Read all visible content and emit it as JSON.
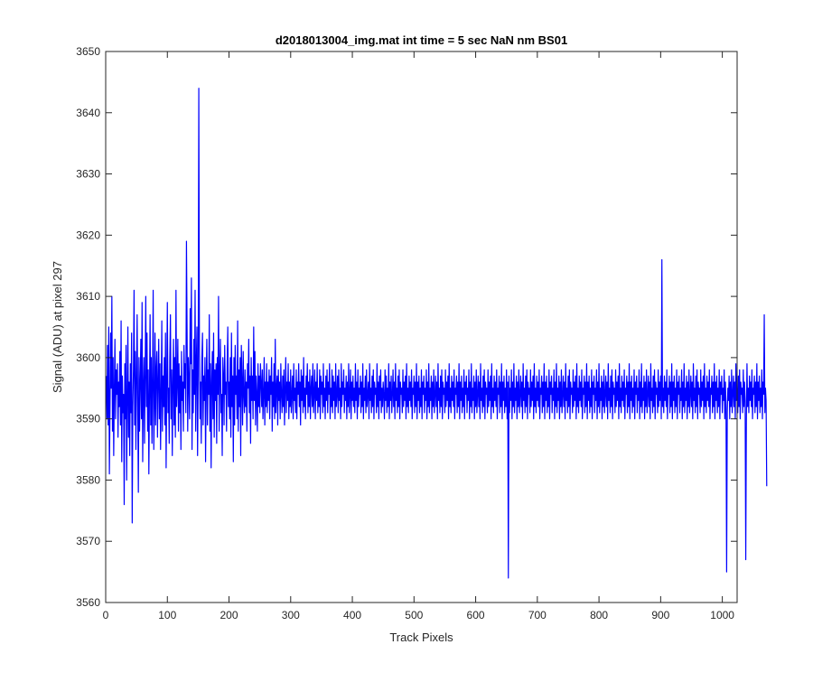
{
  "chart_data": {
    "type": "line",
    "title": "d2018013004_img.mat int time = 5 sec  NaN nm BS01",
    "xlabel": "Track Pixels",
    "ylabel": "Signal (ADU) at pixel 297",
    "xlim": [
      0,
      1024
    ],
    "ylim": [
      3560,
      3650
    ],
    "xticks": [
      0,
      100,
      200,
      300,
      400,
      500,
      600,
      700,
      800,
      900,
      1000
    ],
    "yticks": [
      3560,
      3570,
      3580,
      3590,
      3600,
      3610,
      3620,
      3630,
      3640,
      3650
    ],
    "grid": false,
    "legend": "none",
    "series_color": "#0000ff",
    "series": [
      {
        "x_start": 1,
        "x_step": 1,
        "values": [
          3597,
          3590,
          3602,
          3589,
          3605,
          3581,
          3592,
          3604,
          3595,
          3610,
          3588,
          3600,
          3584,
          3595,
          3603,
          3590,
          3598,
          3594,
          3599,
          3587,
          3596,
          3592,
          3601,
          3589,
          3606,
          3583,
          3597,
          3591,
          3594,
          3576,
          3599,
          3590,
          3602,
          3580,
          3593,
          3605,
          3587,
          3596,
          3584,
          3599,
          3591,
          3604,
          3573,
          3592,
          3598,
          3611,
          3589,
          3601,
          3585,
          3596,
          3607,
          3592,
          3578,
          3600,
          3588,
          3596,
          3603,
          3590,
          3609,
          3583,
          3595,
          3600,
          3586,
          3597,
          3610,
          3592,
          3604,
          3588,
          3598,
          3581,
          3594,
          3607,
          3589,
          3600,
          3586,
          3596,
          3611,
          3585,
          3592,
          3604,
          3589,
          3598,
          3601,
          3587,
          3596,
          3603,
          3590,
          3599,
          3585,
          3594,
          3606,
          3588,
          3597,
          3592,
          3600,
          3589,
          3604,
          3582,
          3596,
          3609,
          3591,
          3595,
          3586,
          3600,
          3607,
          3590,
          3598,
          3584,
          3596,
          3603,
          3589,
          3600,
          3587,
          3611,
          3592,
          3596,
          3603,
          3588,
          3599,
          3591,
          3597,
          3585,
          3601,
          3593,
          3596,
          3588,
          3602,
          3595,
          3599,
          3591,
          3619,
          3604,
          3588,
          3600,
          3596,
          3590,
          3608,
          3599,
          3613,
          3585,
          3598,
          3591,
          3603,
          3594,
          3611,
          3588,
          3599,
          3605,
          3584,
          3597,
          3644,
          3602,
          3590,
          3596,
          3586,
          3600,
          3604,
          3589,
          3597,
          3593,
          3600,
          3583,
          3596,
          3603,
          3589,
          3598,
          3594,
          3607,
          3588,
          3599,
          3582,
          3596,
          3601,
          3590,
          3604,
          3587,
          3598,
          3593,
          3599,
          3586,
          3600,
          3594,
          3610,
          3588,
          3597,
          3603,
          3591,
          3594,
          3584,
          3600,
          3597,
          3589,
          3602,
          3594,
          3596,
          3588,
          3599,
          3605,
          3592,
          3596,
          3590,
          3600,
          3587,
          3604,
          3592,
          3597,
          3583,
          3600,
          3589,
          3602,
          3594,
          3597,
          3590,
          3606,
          3588,
          3598,
          3592,
          3600,
          3584,
          3602,
          3596,
          3589,
          3601,
          3594,
          3591,
          3598,
          3592,
          3596,
          3588,
          3599,
          3595,
          3603,
          3591,
          3597,
          3586,
          3600,
          3593,
          3597,
          3590,
          3605,
          3593,
          3601,
          3589,
          3597,
          3594,
          3588,
          3599,
          3592,
          3597,
          3591,
          3599,
          3596,
          3592,
          3598,
          3590,
          3594,
          3600,
          3589,
          3596,
          3592,
          3599,
          3591,
          3596,
          3593,
          3598,
          3590,
          3597,
          3594,
          3600,
          3588,
          3596,
          3592,
          3599,
          3590,
          3603,
          3591,
          3595,
          3597,
          3589,
          3598,
          3593,
          3596,
          3590,
          3599,
          3594,
          3591,
          3597,
          3592,
          3598,
          3589,
          3595,
          3600,
          3591,
          3596,
          3593,
          3599,
          3590,
          3596,
          3592,
          3598,
          3591,
          3594,
          3597,
          3590,
          3599,
          3593,
          3595,
          3591,
          3598,
          3590,
          3596,
          3594,
          3599,
          3592,
          3596,
          3589,
          3598,
          3593,
          3597,
          3591,
          3600,
          3592,
          3595,
          3590,
          3597,
          3594,
          3599,
          3591,
          3596,
          3592,
          3598,
          3590,
          3595,
          3597,
          3592,
          3599,
          3591,
          3594,
          3598,
          3590,
          3596,
          3593,
          3599,
          3591,
          3595,
          3592,
          3598,
          3590,
          3597,
          3594,
          3596,
          3591,
          3599,
          3592,
          3595,
          3590,
          3597,
          3593,
          3598,
          3591,
          3596,
          3594,
          3599,
          3590,
          3595,
          3592,
          3598,
          3591,
          3597,
          3593,
          3596,
          3590,
          3599,
          3592,
          3594,
          3597,
          3591,
          3598,
          3593,
          3595,
          3590,
          3599,
          3592,
          3596,
          3594,
          3598,
          3591,
          3595,
          3593,
          3597,
          3590,
          3596,
          3592,
          3599,
          3591,
          3594,
          3598,
          3590,
          3596,
          3593,
          3597,
          3592,
          3595,
          3591,
          3599,
          3593,
          3596,
          3590,
          3598,
          3592,
          3595,
          3594,
          3597,
          3591,
          3596,
          3592,
          3599,
          3590,
          3595,
          3593,
          3597,
          3591,
          3598,
          3592,
          3594,
          3596,
          3590,
          3599,
          3593,
          3595,
          3591,
          3597,
          3592,
          3598,
          3590,
          3596,
          3594,
          3595,
          3591,
          3599,
          3592,
          3596,
          3590,
          3597,
          3593,
          3598,
          3591,
          3595,
          3592,
          3596,
          3594,
          3590,
          3598,
          3593,
          3597,
          3591,
          3595,
          3592,
          3599,
          3590,
          3596,
          3593,
          3597,
          3591,
          3594,
          3598,
          3592,
          3596,
          3590,
          3599,
          3593,
          3595,
          3591,
          3597,
          3592,
          3598,
          3590,
          3596,
          3594,
          3595,
          3591,
          3598,
          3592,
          3596,
          3593,
          3597,
          3590,
          3599,
          3592,
          3595,
          3591,
          3597,
          3593,
          3596,
          3592,
          3598,
          3590,
          3595,
          3594,
          3597,
          3591,
          3596,
          3592,
          3599,
          3590,
          3596,
          3593,
          3597,
          3591,
          3595,
          3592,
          3598,
          3590,
          3596,
          3594,
          3597,
          3591,
          3595,
          3593,
          3598,
          3590,
          3596,
          3592,
          3599,
          3591,
          3595,
          3593,
          3597,
          3590,
          3596,
          3592,
          3598,
          3591,
          3594,
          3597,
          3592,
          3596,
          3590,
          3599,
          3593,
          3595,
          3591,
          3597,
          3592,
          3598,
          3590,
          3596,
          3594,
          3595,
          3591,
          3598,
          3592,
          3596,
          3593,
          3597,
          3590,
          3599,
          3592,
          3595,
          3591,
          3597,
          3593,
          3596,
          3592,
          3598,
          3590,
          3595,
          3594,
          3597,
          3591,
          3596,
          3592,
          3599,
          3590,
          3596,
          3593,
          3597,
          3591,
          3595,
          3592,
          3598,
          3590,
          3596,
          3594,
          3597,
          3591,
          3595,
          3593,
          3598,
          3590,
          3596,
          3592,
          3599,
          3591,
          3595,
          3593,
          3597,
          3590,
          3596,
          3592,
          3598,
          3591,
          3594,
          3597,
          3592,
          3596,
          3590,
          3599,
          3593,
          3595,
          3591,
          3597,
          3592,
          3598,
          3590,
          3596,
          3594,
          3595,
          3591,
          3598,
          3592,
          3596,
          3593,
          3597,
          3590,
          3599,
          3592,
          3595,
          3591,
          3597,
          3593,
          3596,
          3592,
          3598,
          3590,
          3595,
          3594,
          3597,
          3591,
          3596,
          3592,
          3599,
          3590,
          3596,
          3593,
          3597,
          3591,
          3595,
          3592,
          3598,
          3590,
          3596,
          3564,
          3597,
          3591,
          3595,
          3593,
          3598,
          3590,
          3596,
          3592,
          3599,
          3591,
          3595,
          3593,
          3597,
          3590,
          3596,
          3592,
          3598,
          3591,
          3594,
          3597,
          3592,
          3596,
          3590,
          3599,
          3593,
          3595,
          3591,
          3597,
          3592,
          3598,
          3590,
          3596,
          3594,
          3595,
          3591,
          3598,
          3592,
          3596,
          3593,
          3597,
          3590,
          3599,
          3592,
          3595,
          3591,
          3597,
          3593,
          3596,
          3592,
          3598,
          3590,
          3595,
          3594,
          3597,
          3591,
          3596,
          3592,
          3599,
          3590,
          3596,
          3593,
          3597,
          3591,
          3595,
          3592,
          3598,
          3590,
          3596,
          3594,
          3597,
          3591,
          3595,
          3593,
          3598,
          3590,
          3596,
          3592,
          3599,
          3591,
          3595,
          3593,
          3597,
          3590,
          3596,
          3592,
          3598,
          3591,
          3594,
          3597,
          3592,
          3596,
          3590,
          3599,
          3593,
          3595,
          3591,
          3597,
          3592,
          3598,
          3590,
          3596,
          3594,
          3595,
          3591,
          3598,
          3592,
          3596,
          3593,
          3597,
          3590,
          3599,
          3592,
          3595,
          3591,
          3597,
          3593,
          3596,
          3592,
          3598,
          3590,
          3595,
          3594,
          3597,
          3591,
          3596,
          3592,
          3599,
          3590,
          3596,
          3593,
          3597,
          3591,
          3595,
          3592,
          3598,
          3590,
          3596,
          3594,
          3597,
          3591,
          3595,
          3593,
          3598,
          3590,
          3596,
          3592,
          3599,
          3591,
          3595,
          3593,
          3597,
          3590,
          3596,
          3592,
          3598,
          3591,
          3594,
          3597,
          3592,
          3596,
          3590,
          3599,
          3593,
          3595,
          3591,
          3597,
          3592,
          3598,
          3590,
          3596,
          3594,
          3595,
          3591,
          3598,
          3592,
          3596,
          3593,
          3597,
          3590,
          3599,
          3592,
          3595,
          3591,
          3597,
          3593,
          3596,
          3592,
          3598,
          3590,
          3595,
          3594,
          3597,
          3591,
          3596,
          3592,
          3599,
          3590,
          3596,
          3593,
          3597,
          3591,
          3595,
          3592,
          3598,
          3590,
          3596,
          3594,
          3597,
          3591,
          3595,
          3593,
          3598,
          3590,
          3596,
          3592,
          3599,
          3591,
          3595,
          3593,
          3597,
          3590,
          3596,
          3592,
          3598,
          3591,
          3594,
          3597,
          3592,
          3596,
          3590,
          3599,
          3593,
          3595,
          3591,
          3597,
          3592,
          3598,
          3590,
          3596,
          3594,
          3595,
          3591,
          3598,
          3592,
          3596,
          3593,
          3597,
          3590,
          3616,
          3592,
          3595,
          3591,
          3597,
          3593,
          3596,
          3592,
          3598,
          3590,
          3595,
          3594,
          3597,
          3591,
          3596,
          3592,
          3599,
          3590,
          3596,
          3593,
          3597,
          3591,
          3595,
          3592,
          3598,
          3590,
          3596,
          3594,
          3597,
          3591,
          3595,
          3593,
          3598,
          3590,
          3596,
          3592,
          3599,
          3591,
          3595,
          3593,
          3597,
          3590,
          3596,
          3592,
          3598,
          3591,
          3594,
          3597,
          3592,
          3596,
          3590,
          3599,
          3593,
          3595,
          3591,
          3597,
          3592,
          3598,
          3590,
          3596,
          3594,
          3595,
          3591,
          3598,
          3592,
          3596,
          3593,
          3597,
          3590,
          3599,
          3592,
          3595,
          3591,
          3597,
          3593,
          3596,
          3592,
          3598,
          3590,
          3595,
          3594,
          3597,
          3591,
          3596,
          3592,
          3599,
          3590,
          3596,
          3593,
          3597,
          3591,
          3595,
          3592,
          3598,
          3590,
          3596,
          3594,
          3597,
          3591,
          3595,
          3593,
          3598,
          3590,
          3596,
          3592,
          3565,
          3591,
          3595,
          3593,
          3597,
          3590,
          3596,
          3592,
          3598,
          3591,
          3594,
          3597,
          3592,
          3596,
          3590,
          3599,
          3593,
          3595,
          3591,
          3597,
          3592,
          3598,
          3590,
          3596,
          3594,
          3595,
          3591,
          3598,
          3592,
          3596,
          3593,
          3567,
          3590,
          3599,
          3592,
          3595,
          3591,
          3597,
          3593,
          3596,
          3592,
          3598,
          3590,
          3595,
          3594,
          3597,
          3591,
          3596,
          3592,
          3599,
          3590,
          3596,
          3593,
          3597,
          3591,
          3595,
          3592,
          3598,
          3590,
          3596,
          3594,
          3607,
          3591,
          3595,
          3593,
          3579
        ]
      }
    ]
  }
}
